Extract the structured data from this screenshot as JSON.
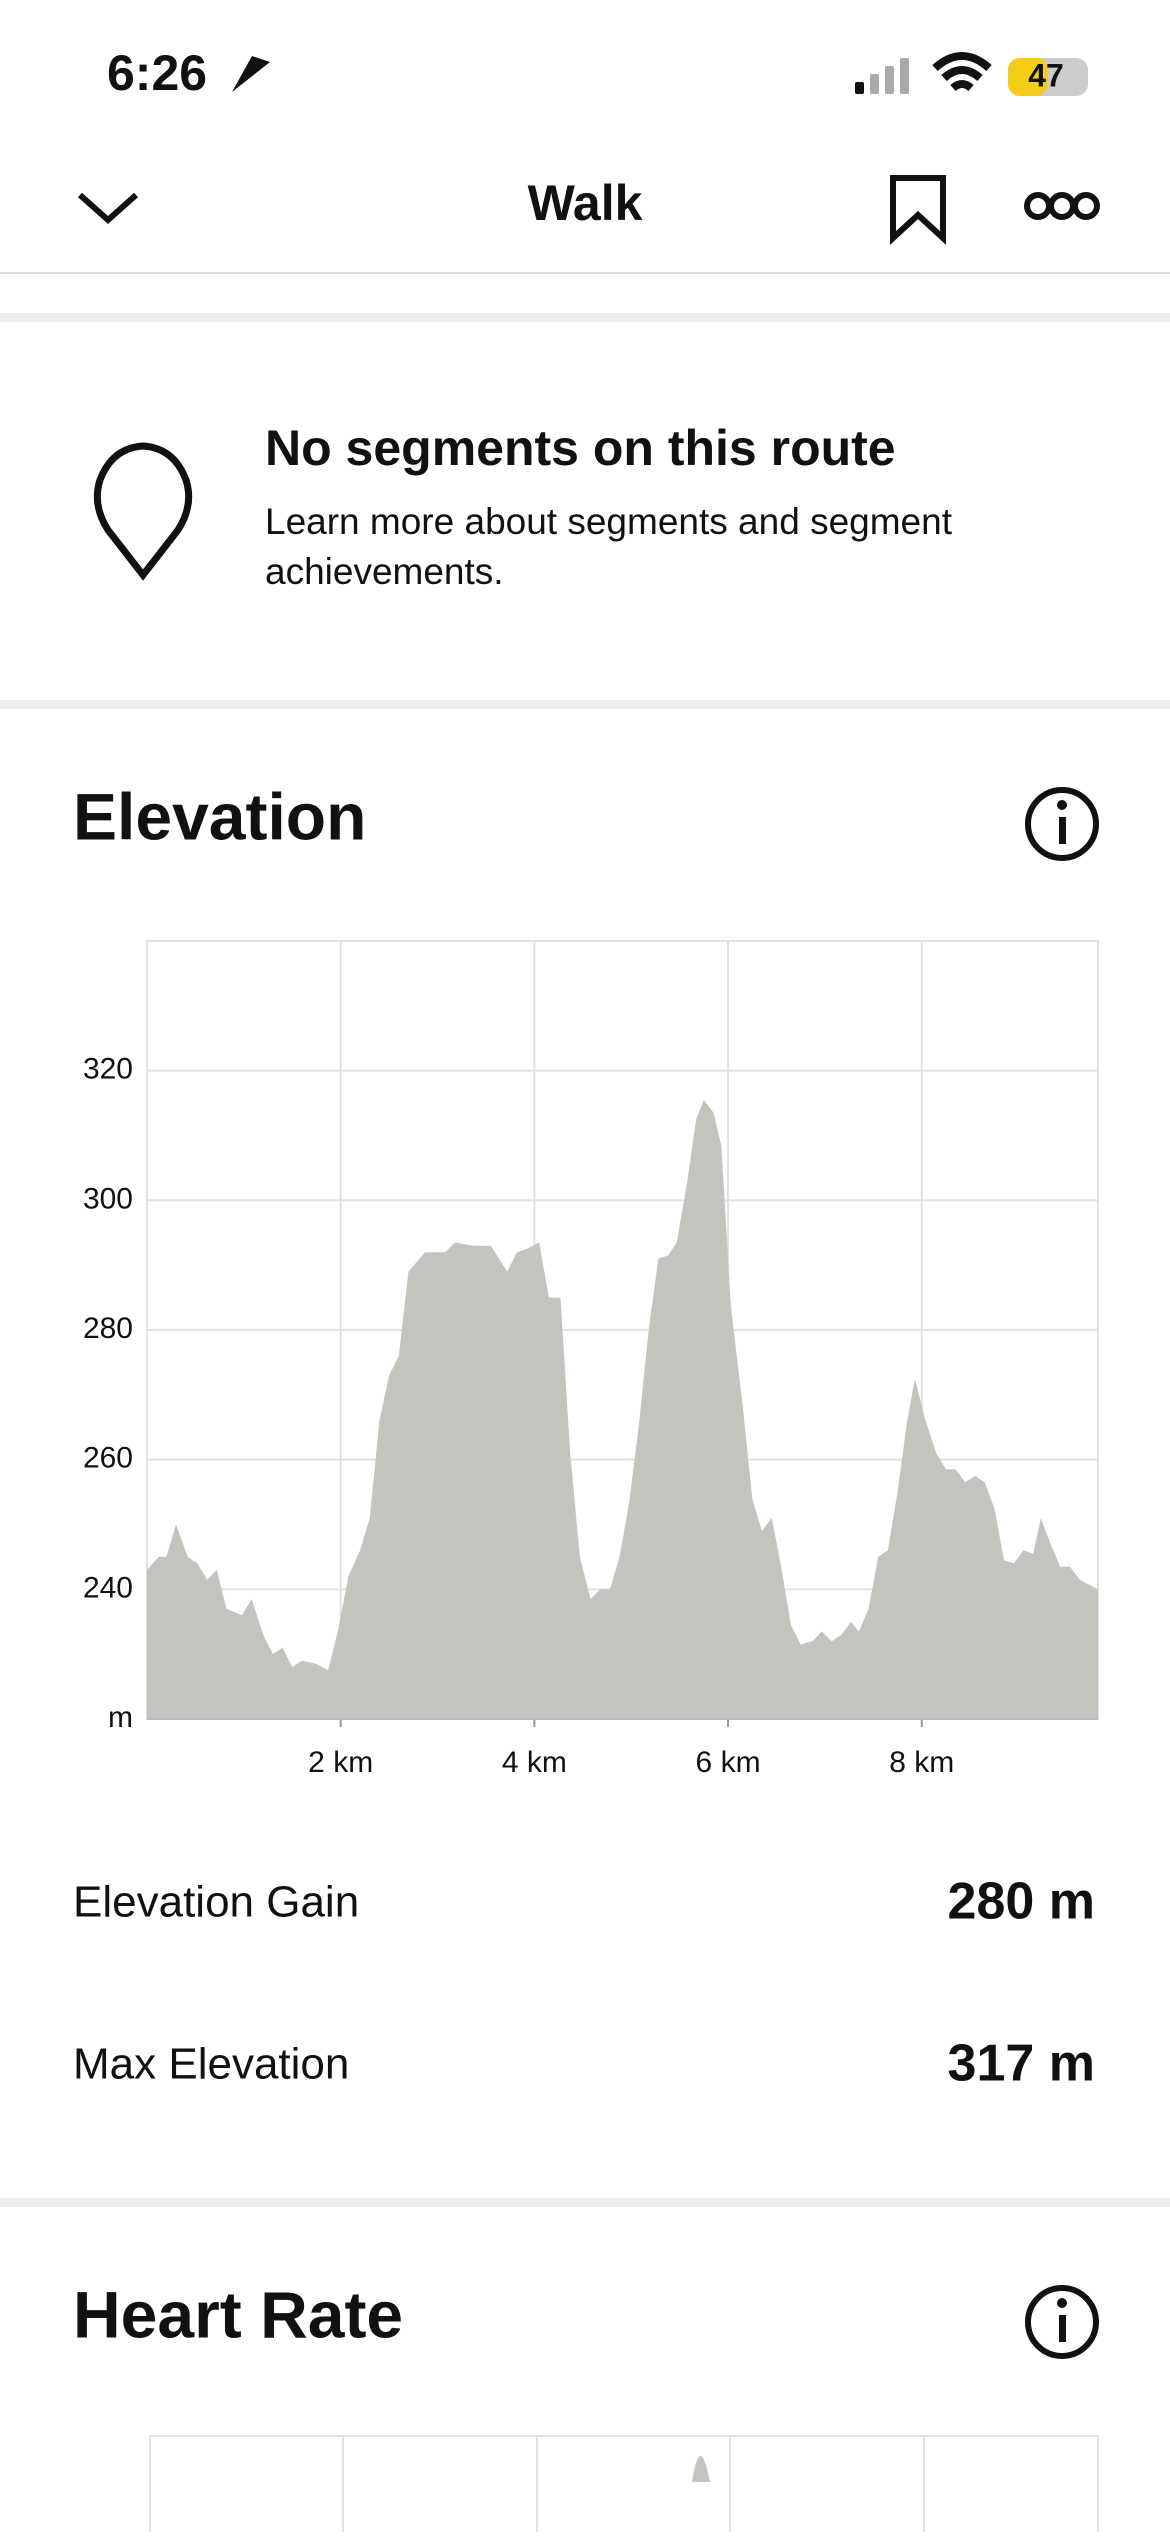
{
  "status_bar": {
    "time": "6:26",
    "battery": "47"
  },
  "header": {
    "title": "Walk"
  },
  "segments": {
    "title": "No segments on this route",
    "body_lines": [
      "Learn more about segments and segment",
      "achievements."
    ]
  },
  "elevation": {
    "title": "Elevation",
    "stats": [
      {
        "label": "Elevation Gain",
        "value": "280 m"
      },
      {
        "label": "Max Elevation",
        "value": "317 m"
      }
    ]
  },
  "chart_data": {
    "type": "area",
    "color": "#c4c4bf",
    "grid": true,
    "x": [
      0,
      0.12,
      0.2,
      0.3,
      0.42,
      0.52,
      0.62,
      0.72,
      0.82,
      0.98,
      1.08,
      1.2,
      1.3,
      1.4,
      1.5,
      1.6,
      1.75,
      1.87,
      1.97,
      2.08,
      2.2,
      2.3,
      2.4,
      2.5,
      2.6,
      2.7,
      2.87,
      2.97,
      3.08,
      3.18,
      3.37,
      3.55,
      3.72,
      3.82,
      3.92,
      4.05,
      4.15,
      4.27,
      4.37,
      4.47,
      4.58,
      4.68,
      4.78,
      4.88,
      4.98,
      5.08,
      5.18,
      5.28,
      5.38,
      5.47,
      5.58,
      5.67,
      5.75,
      5.85,
      5.93,
      6.03,
      6.15,
      6.25,
      6.35,
      6.45,
      6.53,
      6.65,
      6.75,
      6.87,
      6.97,
      7.07,
      7.17,
      7.27,
      7.35,
      7.45,
      7.55,
      7.65,
      7.75,
      7.85,
      7.93,
      8.03,
      8.15,
      8.25,
      8.35,
      8.45,
      8.55,
      8.65,
      8.75,
      8.85,
      8.95,
      9.05,
      9.15,
      9.23,
      9.33,
      9.43,
      9.53,
      9.63,
      9.82
    ],
    "values": [
      243,
      245,
      245,
      250,
      245,
      244,
      241.5,
      243,
      237,
      236,
      238.5,
      233,
      230,
      231,
      228,
      229,
      228.5,
      227.5,
      233.5,
      242,
      246,
      251,
      266,
      273,
      276,
      289,
      292,
      292,
      292,
      293.5,
      293,
      293,
      289,
      292,
      292.5,
      293.5,
      285,
      285,
      261,
      245,
      238.5,
      240,
      240,
      245,
      253.5,
      265.5,
      280,
      291,
      291.5,
      293.5,
      303,
      312.5,
      315.5,
      313.5,
      308.5,
      283.5,
      268.5,
      254,
      249,
      251,
      245,
      234.5,
      231.5,
      232,
      233.5,
      232,
      233,
      235,
      233.5,
      237,
      245,
      246,
      255,
      266,
      272.5,
      266.5,
      261,
      258.5,
      258.5,
      256.5,
      257.5,
      256.5,
      252.5,
      244.5,
      244,
      246,
      245.5,
      251,
      247,
      243.5,
      243.5,
      241.5,
      240
    ],
    "xlim": [
      0,
      9.82
    ],
    "ylim": [
      220,
      340
    ],
    "xticks": [
      {
        "value": 2,
        "label": "2 km"
      },
      {
        "value": 4,
        "label": "4 km"
      },
      {
        "value": 6,
        "label": "6 km"
      },
      {
        "value": 8,
        "label": "8 km"
      }
    ],
    "yticks": [
      {
        "value": 220,
        "label": "m"
      },
      240,
      260,
      280,
      300,
      320
    ]
  },
  "heart_rate": {
    "title": "Heart Rate"
  }
}
